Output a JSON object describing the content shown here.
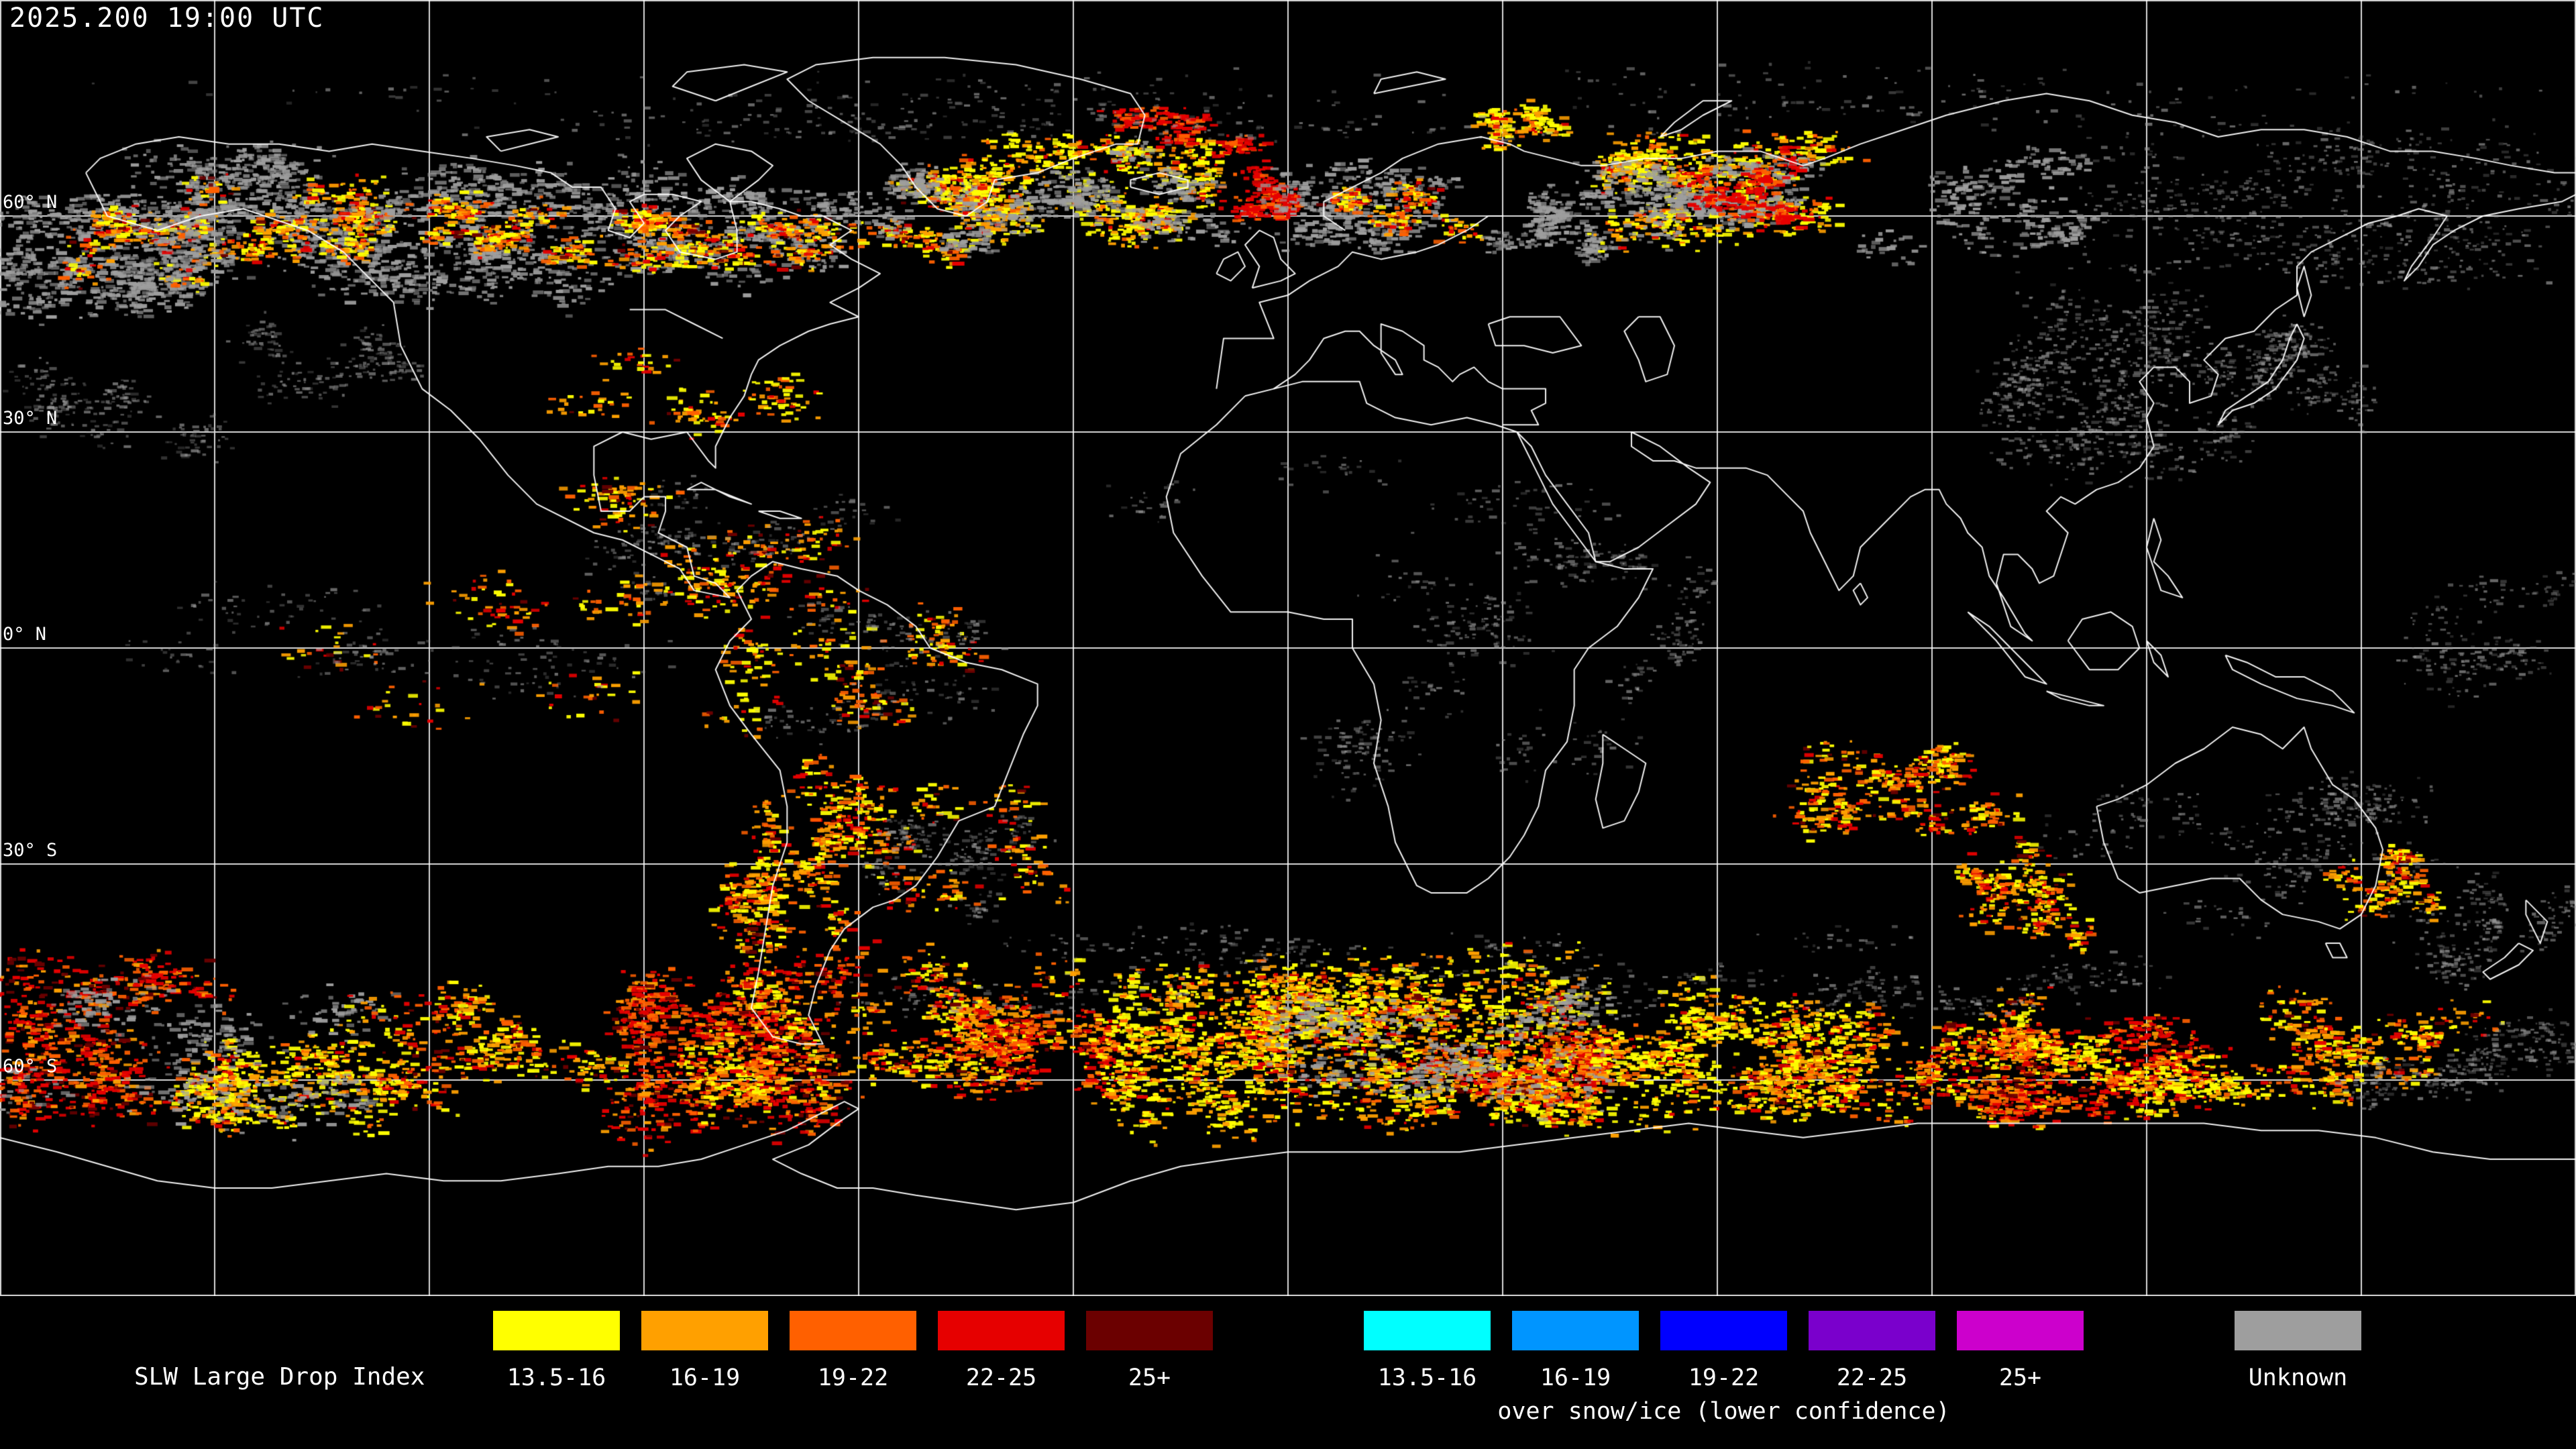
{
  "title_bar": {
    "timestamp": "2025.200 19:00 UTC"
  },
  "map": {
    "lat_labels": [
      {
        "label": "60° N"
      },
      {
        "label": "30° N"
      },
      {
        "label": "0° N"
      },
      {
        "label": "30° S"
      },
      {
        "label": "60° S"
      }
    ]
  },
  "legend": {
    "title": "SLW Large Drop Index",
    "standard_items": [
      {
        "label": "13.5-16",
        "color": "#ffff00"
      },
      {
        "label": "16-19",
        "color": "#ffa000"
      },
      {
        "label": "19-22",
        "color": "#ff6000"
      },
      {
        "label": "22-25",
        "color": "#e60000"
      },
      {
        "label": "25+",
        "color": "#6b0000"
      }
    ],
    "snow_ice_items": [
      {
        "label": "13.5-16",
        "color": "#00ffff"
      },
      {
        "label": "16-19",
        "color": "#0095ff"
      },
      {
        "label": "19-22",
        "color": "#0000ff"
      },
      {
        "label": "22-25",
        "color": "#7a00cc"
      },
      {
        "label": "25+",
        "color": "#cc00cc"
      }
    ],
    "snow_ice_caption": "over snow/ice (lower confidence)",
    "unknown_item": {
      "label": "Unknown",
      "color": "#9e9e9e"
    }
  }
}
